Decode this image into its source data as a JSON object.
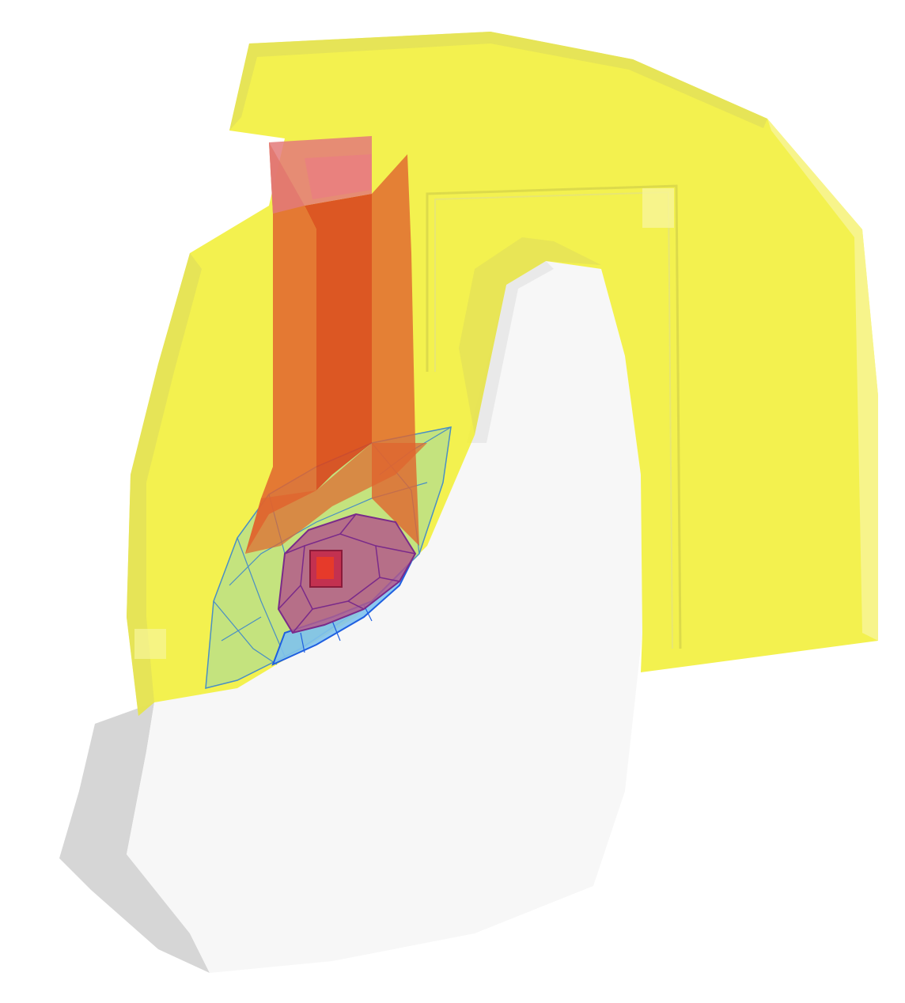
{
  "scene": {
    "background": "#ffffff",
    "colors": {
      "base_light": "#f7f7f7",
      "base_shadow": "#d6d6d6",
      "yellow_fill": "#f2ef3c",
      "yellow_rim": "#e2df5a",
      "yellow_pale": "#f7f59a",
      "orange": "#e0642e",
      "orange_dark": "#d9461e",
      "orange_top": "#e37a7a",
      "green": "#b8e08a",
      "green_line": "#4a8fc4",
      "blue": "#7fc2ee",
      "blue_line": "#1f5fe0",
      "purple": "#b45a8a",
      "purple_line": "#7a2a8a",
      "red_core": "#e63a2a"
    }
  }
}
